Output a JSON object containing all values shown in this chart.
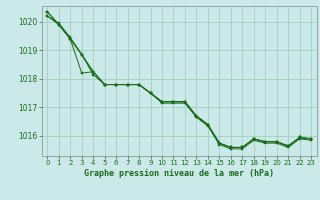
{
  "title": "Graphe pression niveau de la mer (hPa)",
  "background_color": "#cbe9e9",
  "grid_color": "#99ccbb",
  "line_color": "#1a6b1a",
  "xlim": [
    -0.5,
    23.5
  ],
  "ylim": [
    1015.3,
    1020.55
  ],
  "yticks": [
    1016,
    1017,
    1018,
    1019,
    1020
  ],
  "xticks": [
    0,
    1,
    2,
    3,
    4,
    5,
    6,
    7,
    8,
    9,
    10,
    11,
    12,
    13,
    14,
    15,
    16,
    17,
    18,
    19,
    20,
    21,
    22,
    23
  ],
  "line1": [
    1020.2,
    1019.95,
    1019.45,
    1018.85,
    1018.25,
    1017.8,
    1017.8,
    1017.8,
    1017.8,
    1017.5,
    1017.2,
    1017.2,
    1017.2,
    1016.7,
    1016.4,
    1015.75,
    1015.6,
    1015.6,
    1015.9,
    1015.8,
    1015.8,
    1015.65,
    1015.95,
    1015.9
  ],
  "line2": [
    1020.2,
    1019.9,
    1019.4,
    1018.2,
    1018.25,
    1017.8,
    1017.8,
    1017.8,
    1017.8,
    1017.5,
    1017.2,
    1017.2,
    1017.2,
    1016.7,
    1016.4,
    1015.75,
    1015.6,
    1015.6,
    1015.9,
    1015.8,
    1015.8,
    1015.65,
    1015.95,
    1015.9
  ],
  "line3": [
    1020.35,
    1019.9,
    1019.4,
    1018.85,
    1018.15,
    1017.8,
    1017.8,
    1017.8,
    1017.8,
    1017.5,
    1017.2,
    1017.2,
    1017.2,
    1016.7,
    1016.4,
    1015.75,
    1015.6,
    1015.6,
    1015.9,
    1015.8,
    1015.8,
    1015.65,
    1015.95,
    1015.9
  ],
  "line4": [
    1020.35,
    1019.9,
    1019.4,
    1018.85,
    1018.25,
    1017.8,
    1017.8,
    1017.8,
    1017.8,
    1017.5,
    1017.15,
    1017.15,
    1017.15,
    1016.65,
    1016.35,
    1015.7,
    1015.55,
    1015.55,
    1015.85,
    1015.75,
    1015.75,
    1015.6,
    1015.9,
    1015.85
  ]
}
